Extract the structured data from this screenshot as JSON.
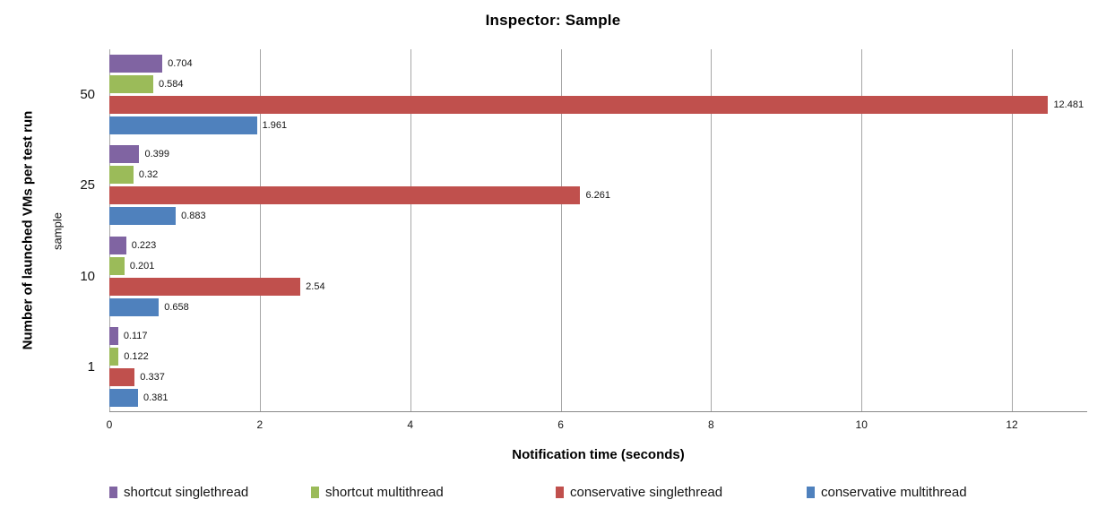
{
  "chart_data": {
    "type": "bar",
    "orientation": "horizontal",
    "title": "Inspector: Sample",
    "xlabel": "Notification time (seconds)",
    "ylabel_outer": "Number of launched VMs per test run",
    "ylabel_inner": "sample",
    "categories": [
      "50",
      "25",
      "10",
      "1"
    ],
    "xlim": [
      0,
      13
    ],
    "xticks": [
      0,
      2,
      4,
      6,
      8,
      10,
      12
    ],
    "grid": true,
    "legend_position": "bottom",
    "series": [
      {
        "name": "shortcut singlethread",
        "color": "#8064A2",
        "values": [
          0.704,
          0.399,
          0.223,
          0.117
        ],
        "labels": [
          "0.704",
          "0.399",
          "0.223",
          "0.117"
        ]
      },
      {
        "name": "shortcut multithread",
        "color": "#9BBB59",
        "values": [
          0.584,
          0.32,
          0.201,
          0.122
        ],
        "labels": [
          "0.584",
          "0.32",
          "0.201",
          "0.122"
        ]
      },
      {
        "name": "conservative singlethread",
        "color": "#C0504D",
        "values": [
          12.481,
          6.261,
          2.54,
          0.337
        ],
        "labels": [
          "12.481",
          "6.261",
          "2.54",
          "0.337"
        ]
      },
      {
        "name": "conservative multithread",
        "color": "#4F81BD",
        "values": [
          1.961,
          0.883,
          0.658,
          0.381
        ],
        "labels": [
          "1.961",
          "0.883",
          "0.658",
          "0.381"
        ]
      }
    ],
    "colors": {
      "gridline": "#a6a6a6",
      "axis_line": "#898989",
      "background": "#ffffff",
      "text": "#141414"
    }
  }
}
